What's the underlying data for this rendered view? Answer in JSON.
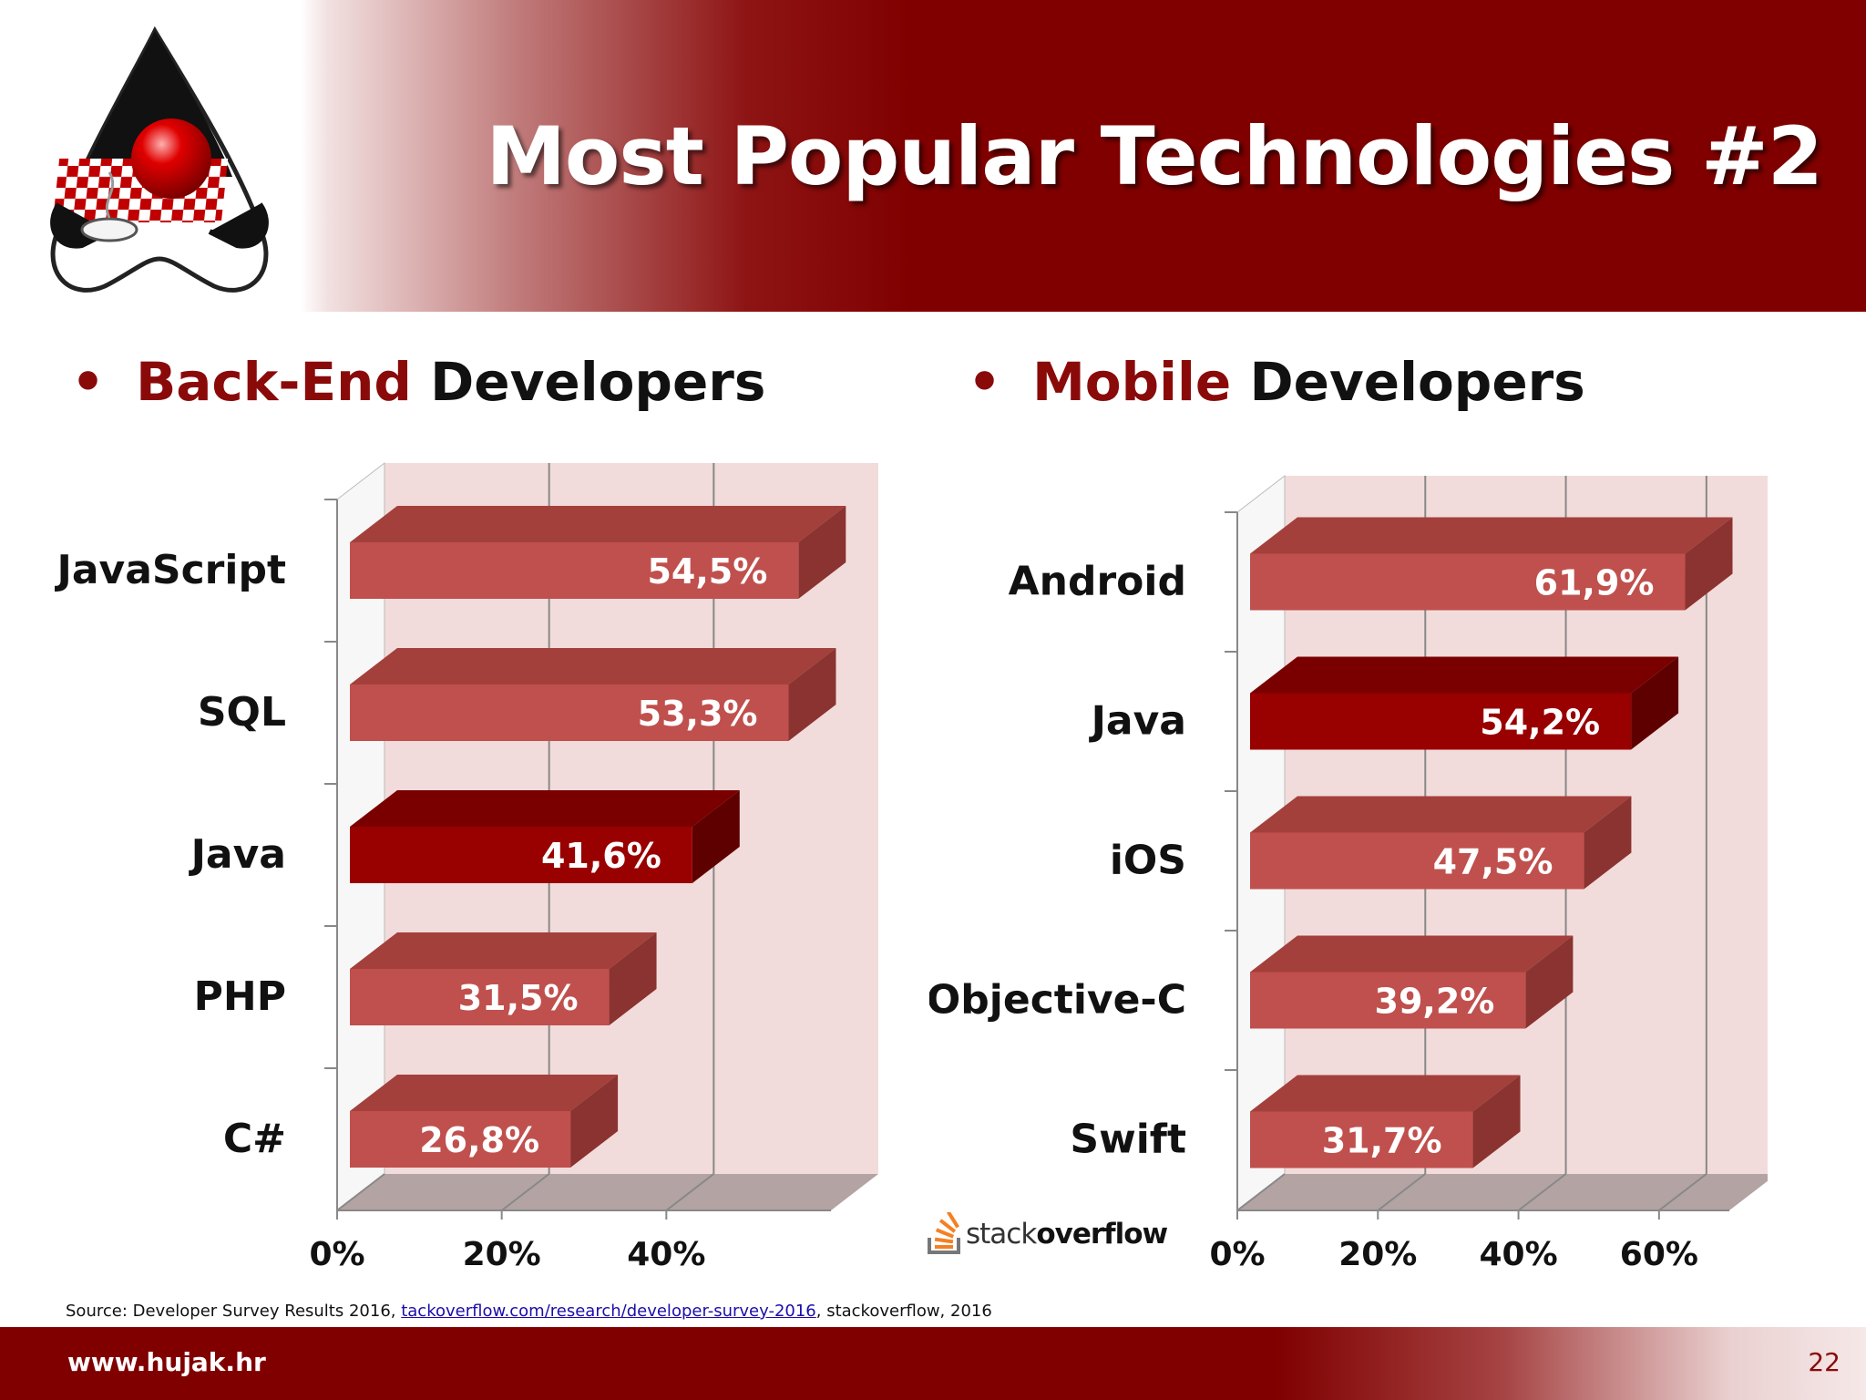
{
  "title": "Most Popular Technologies #2",
  "left_heading": {
    "bullet": "•",
    "accent": "Back-End",
    "rest": " Developers"
  },
  "right_heading": {
    "bullet": "•",
    "accent": "Mobile",
    "rest": " Developers"
  },
  "source": {
    "prefix": "Source: Developer Survey Results 2016, ",
    "link": "tackoverflow.com/research/developer-survey-2016",
    "suffix": ", stackoverflow, 2016"
  },
  "stackoverflow_logo": {
    "part1": "stack",
    "part2": "overflow",
    "icon": "stackoverflow-icon"
  },
  "footer": {
    "url": "www.hujak.hr",
    "page": "22"
  },
  "colors": {
    "brand": "#800000",
    "bar": "#c0504d",
    "bar_highlight": "#990000",
    "plot_bg": "#f2dcdb"
  },
  "chart_data": [
    {
      "type": "bar",
      "orientation": "horizontal",
      "title": "Back-End Developers",
      "categories": [
        "JavaScript",
        "SQL",
        "Java",
        "PHP",
        "C#"
      ],
      "values": [
        54.5,
        53.3,
        41.6,
        31.5,
        26.8
      ],
      "labels": [
        "54,5%",
        "53,3%",
        "41,6%",
        "31,5%",
        "26,8%"
      ],
      "highlight": "Java",
      "xlim": [
        0,
        60
      ],
      "ticks": [
        "0%",
        "20%",
        "40%"
      ],
      "grid": true
    },
    {
      "type": "bar",
      "orientation": "horizontal",
      "title": "Mobile Developers",
      "categories": [
        "Android",
        "Java",
        "iOS",
        "Objective-C",
        "Swift"
      ],
      "values": [
        61.9,
        54.2,
        47.5,
        39.2,
        31.7
      ],
      "labels": [
        "61,9%",
        "54,2%",
        "47,5%",
        "39,2%",
        "31,7%"
      ],
      "highlight": "Java",
      "xlim": [
        0,
        70
      ],
      "ticks": [
        "0%",
        "20%",
        "40%",
        "60%"
      ],
      "grid": true
    }
  ]
}
